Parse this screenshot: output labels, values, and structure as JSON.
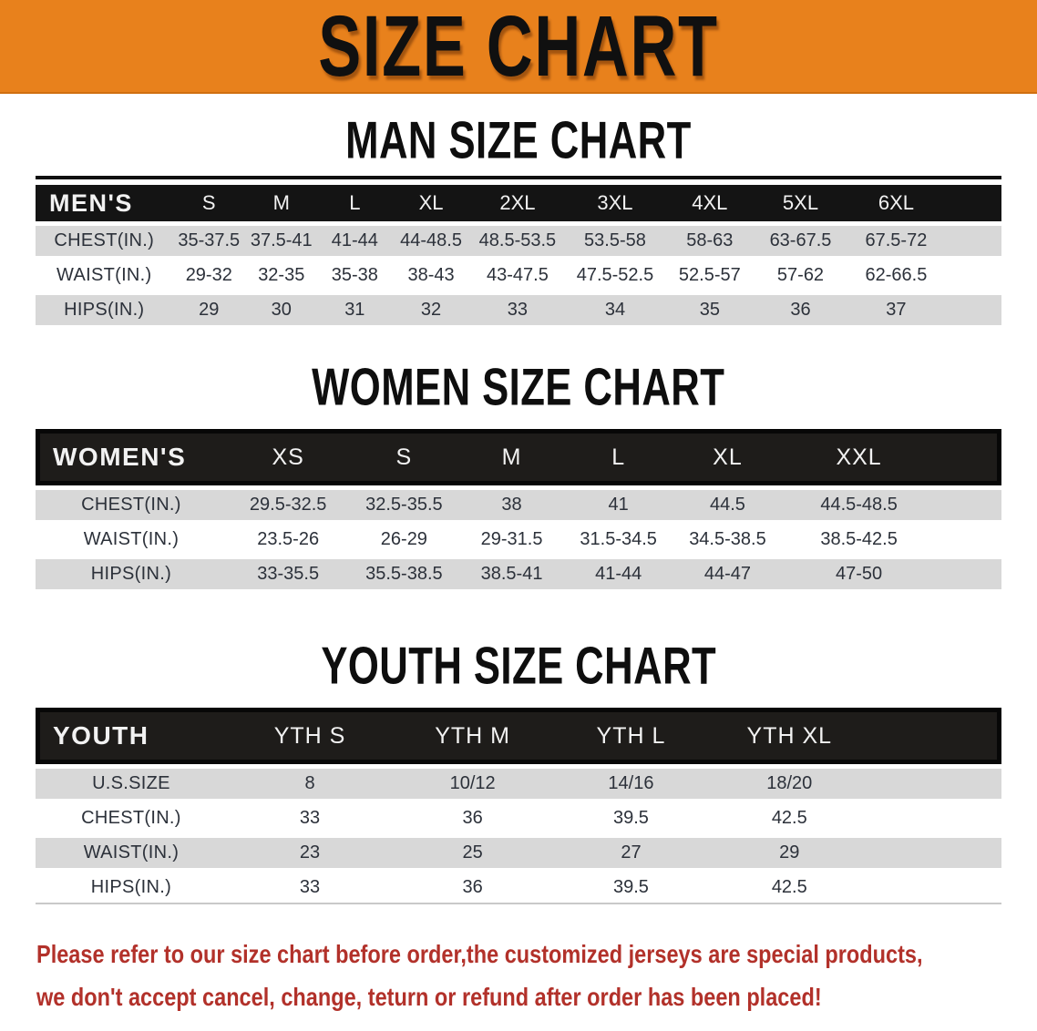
{
  "banner": {
    "title": "SIZE CHART"
  },
  "colors": {
    "banner_bg": "#E8811C",
    "header_black": "#141414",
    "boxed_header_fill": "#1E1C1A",
    "stripe_gray": "#D8D8D8",
    "footer_red": "#B2312A"
  },
  "sections": [
    {
      "heading": "MAN SIZE CHART",
      "table": {
        "header_label": "MEN'S",
        "columns": [
          "S",
          "M",
          "L",
          "XL",
          "2XL",
          "3XL",
          "4XL",
          "5XL",
          "6XL"
        ],
        "rows": [
          {
            "label": "CHEST(IN.)",
            "values": [
              "35-37.5",
              "37.5-41",
              "41-44",
              "44-48.5",
              "48.5-53.5",
              "53.5-58",
              "58-63",
              "63-67.5",
              "67.5-72"
            ]
          },
          {
            "label": "WAIST(IN.)",
            "values": [
              "29-32",
              "32-35",
              "35-38",
              "38-43",
              "43-47.5",
              "47.5-52.5",
              "52.5-57",
              "57-62",
              "62-66.5"
            ]
          },
          {
            "label": "HIPS(IN.)",
            "values": [
              "29",
              "30",
              "31",
              "32",
              "33",
              "34",
              "35",
              "36",
              "37"
            ]
          }
        ]
      }
    },
    {
      "heading": "WOMEN SIZE CHART",
      "table": {
        "header_label": "WOMEN'S",
        "columns": [
          "XS",
          "S",
          "M",
          "L",
          "XL",
          "XXL"
        ],
        "rows": [
          {
            "label": "CHEST(IN.)",
            "values": [
              "29.5-32.5",
              "32.5-35.5",
              "38",
              "41",
              "44.5",
              "44.5-48.5"
            ]
          },
          {
            "label": "WAIST(IN.)",
            "values": [
              "23.5-26",
              "26-29",
              "29-31.5",
              "31.5-34.5",
              "34.5-38.5",
              "38.5-42.5"
            ]
          },
          {
            "label": "HIPS(IN.)",
            "values": [
              "33-35.5",
              "35.5-38.5",
              "38.5-41",
              "41-44",
              "44-47",
              "47-50"
            ]
          }
        ]
      }
    },
    {
      "heading": "YOUTH SIZE CHART",
      "table": {
        "header_label": "YOUTH",
        "columns": [
          "YTH S",
          "YTH M",
          "YTH L",
          "YTH XL"
        ],
        "rows": [
          {
            "label": "U.S.SIZE",
            "values": [
              "8",
              "10/12",
              "14/16",
              "18/20"
            ]
          },
          {
            "label": "CHEST(IN.)",
            "values": [
              "33",
              "36",
              "39.5",
              "42.5"
            ]
          },
          {
            "label": "WAIST(IN.)",
            "values": [
              "23",
              "25",
              "27",
              "29"
            ]
          },
          {
            "label": "HIPS(IN.)",
            "values": [
              "33",
              "36",
              "39.5",
              "42.5"
            ]
          }
        ]
      }
    }
  ],
  "footer": {
    "line1": "Please refer to our size chart before order,the customized jerseys are special products,",
    "line2": "we don't accept cancel, change, teturn or refund after order has been placed!"
  }
}
